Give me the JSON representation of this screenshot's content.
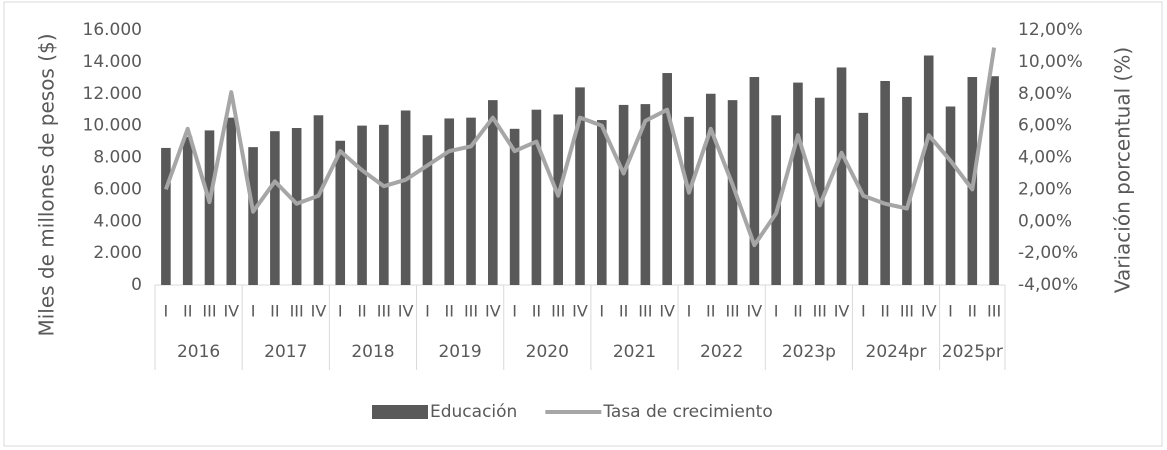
{
  "chart_data": {
    "type": "combo",
    "y_label": "Miles de millones de pesos ($)",
    "y2_label": "Variación porcentual (%)",
    "groups": [
      {
        "name": "2016",
        "categories": [
          "I",
          "II",
          "III",
          "IV"
        ]
      },
      {
        "name": "2017",
        "categories": [
          "I",
          "II",
          "III",
          "IV"
        ]
      },
      {
        "name": "2018",
        "categories": [
          "I",
          "II",
          "III",
          "IV"
        ]
      },
      {
        "name": "2019",
        "categories": [
          "I",
          "II",
          "III",
          "IV"
        ]
      },
      {
        "name": "2020",
        "categories": [
          "I",
          "II",
          "III",
          "IV"
        ]
      },
      {
        "name": "2021",
        "categories": [
          "I",
          "II",
          "III",
          "IV"
        ]
      },
      {
        "name": "2022",
        "categories": [
          "I",
          "II",
          "III",
          "IV"
        ]
      },
      {
        "name": "2023p",
        "categories": [
          "I",
          "II",
          "III",
          "IV"
        ]
      },
      {
        "name": "2024pr",
        "categories": [
          "I",
          "II",
          "III",
          "IV"
        ]
      },
      {
        "name": "2025pr",
        "categories": [
          "I",
          "II",
          "III"
        ]
      }
    ],
    "series": [
      {
        "name": "Educación",
        "type": "bar",
        "color": "#595959",
        "values": [
          8600,
          9300,
          9700,
          10500,
          8650,
          9650,
          9850,
          10650,
          9050,
          10000,
          10050,
          10950,
          9400,
          10450,
          10500,
          11600,
          9800,
          11000,
          10700,
          12400,
          10350,
          11300,
          11350,
          13300,
          10550,
          12000,
          11600,
          13050,
          10650,
          12700,
          11750,
          13650,
          10800,
          12800,
          11800,
          14400,
          11200,
          13050,
          13100
        ]
      },
      {
        "name": "Tasa de crecimiento",
        "type": "line",
        "axis": "y2",
        "color": "#a6a6a6",
        "values": [
          2.0,
          5.8,
          1.2,
          8.1,
          0.6,
          2.5,
          1.1,
          1.6,
          4.4,
          3.2,
          2.2,
          2.6,
          3.5,
          4.4,
          4.7,
          6.5,
          4.4,
          5.0,
          1.6,
          6.5,
          6.0,
          3.0,
          6.3,
          7.0,
          1.8,
          5.8,
          2.3,
          -1.5,
          0.5,
          5.4,
          1.0,
          4.3,
          1.6,
          1.1,
          0.8,
          5.4,
          3.8,
          2.0,
          10.9
        ]
      }
    ],
    "ylim": [
      0,
      16000
    ],
    "yticks": [
      0,
      {
        "value": 2000,
        "label": "2.000"
      },
      {
        "value": 4000,
        "label": "4.000"
      },
      {
        "value": 6000,
        "label": "6.000"
      },
      {
        "value": 8000,
        "label": "8.000"
      },
      {
        "value": 10000,
        "label": "10.000"
      },
      {
        "value": 12000,
        "label": "12.000"
      },
      {
        "value": 14000,
        "label": "14.000"
      },
      {
        "value": 16000,
        "label": "16.000"
      }
    ],
    "y2lim": [
      -4,
      12
    ],
    "y2ticks": [
      {
        "value": -4,
        "label": "-4,00%"
      },
      {
        "value": -2,
        "label": "-2,00%"
      },
      {
        "value": 0,
        "label": "0,00%"
      },
      {
        "value": 2,
        "label": "2,00%"
      },
      {
        "value": 4,
        "label": "4,00%"
      },
      {
        "value": 6,
        "label": "6,00%"
      },
      {
        "value": 8,
        "label": "8,00%"
      },
      {
        "value": 10,
        "label": "10,00%"
      },
      {
        "value": 12,
        "label": "12,00%"
      }
    ],
    "legend": "bottom"
  }
}
